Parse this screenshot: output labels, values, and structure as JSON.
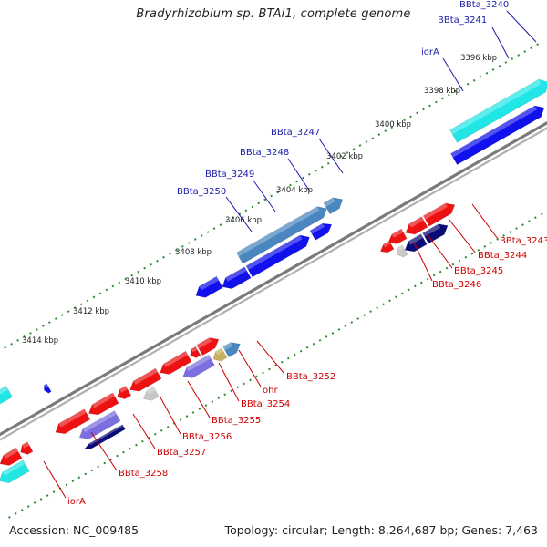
{
  "title": "Bradyrhizobium sp. BTAi1, complete genome",
  "footer": {
    "accession": "Accession: NC_009485",
    "stats": "Topology: circular; Length: 8,264,687 bp; Genes: 7,463"
  },
  "colors": {
    "backbone": "#888888",
    "tick": "#2e8b2e",
    "forward_label": "#1a1aaa",
    "reverse_label": "#cc0000",
    "cds_red": "#ee1111",
    "cds_blue": "#1111ee",
    "cds_navy": "#0b0b77",
    "cds_cyan": "#22e6e6",
    "cds_steel": "#4a86c0",
    "cds_violet": "#7a6ee0",
    "cds_grey": "#c8c8c8",
    "cds_khaki": "#c8b060"
  },
  "ticks": [
    {
      "label": "3396 kbp"
    },
    {
      "label": "3398 kbp"
    },
    {
      "label": "3400 kbp"
    },
    {
      "label": "3402 kbp"
    },
    {
      "label": "3404 kbp"
    },
    {
      "label": "3406 kbp"
    },
    {
      "label": "3408 kbp"
    },
    {
      "label": "3410 kbp"
    },
    {
      "label": "3412 kbp"
    },
    {
      "label": "3414 kbp"
    }
  ],
  "forward_labels": [
    {
      "text": "BBta_3240"
    },
    {
      "text": "BBta_3241"
    },
    {
      "text": "iorA"
    },
    {
      "text": "BBta_3247"
    },
    {
      "text": "BBta_3248"
    },
    {
      "text": "BBta_3249"
    },
    {
      "text": "BBta_3250"
    }
  ],
  "reverse_labels": [
    {
      "text": "BBta_3243"
    },
    {
      "text": "BBta_3244"
    },
    {
      "text": "BBta_3245"
    },
    {
      "text": "BBta_3246"
    },
    {
      "text": "BBta_3252"
    },
    {
      "text": "ohr"
    },
    {
      "text": "BBta_3254"
    },
    {
      "text": "BBta_3255"
    },
    {
      "text": "BBta_3256"
    },
    {
      "text": "BBta_3257"
    },
    {
      "text": "BBta_3258"
    },
    {
      "text": "iorA"
    }
  ]
}
